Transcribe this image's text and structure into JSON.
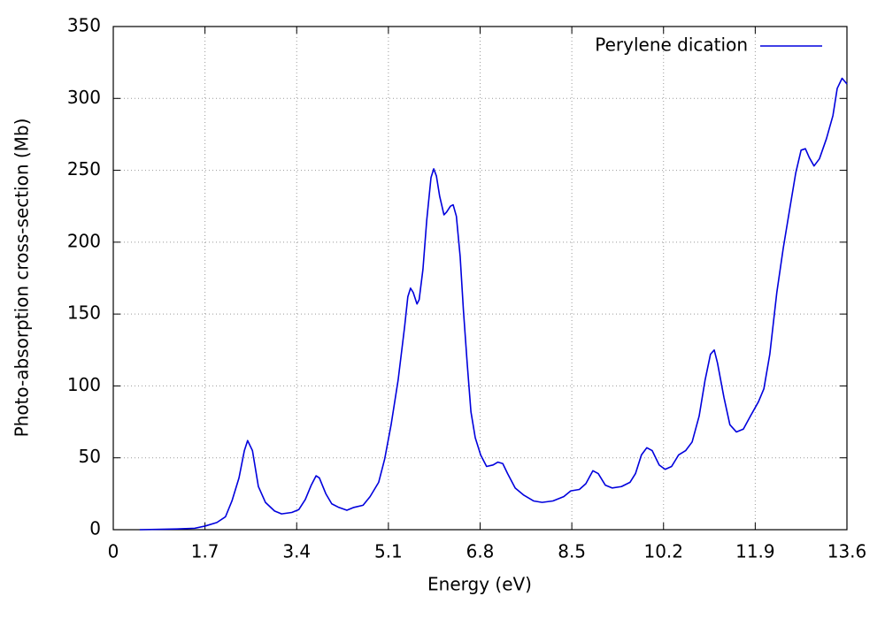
{
  "chart_data": {
    "type": "line",
    "xlabel": "Energy (eV)",
    "ylabel": "Photo-absorption cross-section (Mb)",
    "x": [
      0.49,
      1.18,
      1.51,
      1.7,
      1.92,
      2.08,
      2.2,
      2.33,
      2.43,
      2.49,
      2.58,
      2.69,
      2.82,
      2.99,
      3.12,
      3.31,
      3.44,
      3.56,
      3.67,
      3.76,
      3.82,
      3.94,
      4.05,
      4.18,
      4.33,
      4.46,
      4.63,
      4.76,
      4.92,
      5.03,
      5.15,
      5.28,
      5.4,
      5.46,
      5.51,
      5.56,
      5.63,
      5.67,
      5.74,
      5.81,
      5.89,
      5.94,
      5.99,
      6.05,
      6.13,
      6.18,
      6.25,
      6.3,
      6.36,
      6.43,
      6.49,
      6.56,
      6.63,
      6.71,
      6.81,
      6.92,
      7.04,
      7.13,
      7.22,
      7.31,
      7.45,
      7.61,
      7.79,
      7.95,
      8.15,
      8.35,
      8.48,
      8.64,
      8.76,
      8.89,
      8.99,
      9.12,
      9.25,
      9.42,
      9.58,
      9.68,
      9.79,
      9.89,
      9.99,
      10.12,
      10.23,
      10.35,
      10.48,
      10.61,
      10.73,
      10.86,
      10.97,
      11.07,
      11.14,
      11.2,
      11.32,
      11.43,
      11.55,
      11.68,
      11.81,
      11.96,
      12.06,
      12.17,
      12.3,
      12.42,
      12.53,
      12.65,
      12.75,
      12.83,
      12.9,
      12.99,
      13.09,
      13.22,
      13.34,
      13.42,
      13.51,
      13.6
    ],
    "series": [
      {
        "name": "Perylene dication",
        "color": "#0000dd",
        "values": [
          0,
          0.5,
          1,
          2.5,
          5,
          9,
          20,
          36,
          55,
          62,
          55,
          30,
          19,
          13,
          11,
          12,
          14,
          21,
          31,
          37.5,
          36,
          25,
          18,
          15.5,
          13.5,
          15.5,
          17,
          23,
          33,
          49,
          73,
          104,
          141,
          162,
          168,
          165,
          157,
          160,
          181,
          215,
          245,
          251,
          246,
          232,
          219,
          221,
          225,
          226,
          218,
          190,
          153,
          116,
          82,
          64,
          52,
          44,
          45,
          47,
          46,
          39,
          29,
          24,
          20,
          19,
          20,
          23,
          27,
          28,
          32,
          41,
          39,
          31,
          29,
          30,
          33,
          39,
          52,
          57,
          55,
          45,
          42,
          44,
          52,
          55,
          61,
          79,
          104,
          122,
          125,
          116,
          92,
          73,
          68,
          70,
          79,
          89,
          98,
          122,
          165,
          196,
          221,
          248,
          264,
          265,
          259,
          253,
          258,
          272,
          288,
          307,
          314,
          310
        ]
      }
    ],
    "xlim": [
      0,
      13.6
    ],
    "xticks": [
      0,
      1.7,
      3.4,
      5.1,
      6.8,
      8.5,
      10.2,
      11.9,
      13.6
    ],
    "ylim": [
      0,
      350
    ],
    "yticks": [
      0,
      50,
      100,
      150,
      200,
      250,
      300,
      350
    ],
    "grid": true,
    "legend": "top-right"
  }
}
